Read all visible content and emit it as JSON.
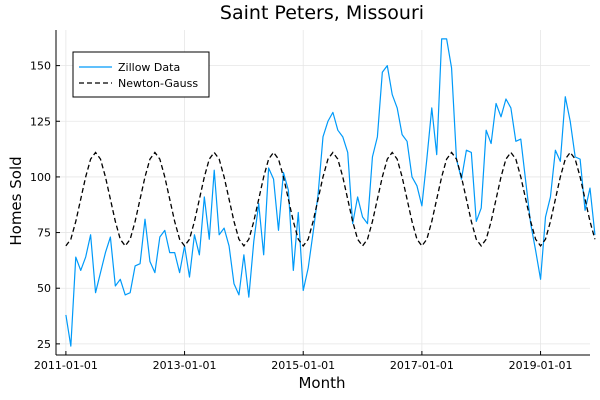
{
  "chart_data": {
    "type": "line",
    "title": "Saint Peters, Missouri",
    "xlabel": "Month",
    "ylabel": "Homes Sold",
    "x_start": "2011-01-01",
    "x_step": "1 month",
    "x_ticks": [
      "2011-01-01",
      "2013-01-01",
      "2015-01-01",
      "2017-01-01",
      "2019-01-01"
    ],
    "xlim": [
      "2010-11-01",
      "2019-11-01"
    ],
    "y_ticks": [
      25,
      50,
      75,
      100,
      125,
      150
    ],
    "ylim": [
      20,
      166
    ],
    "grid": true,
    "legend_position": "top-left",
    "series": [
      {
        "name": "Zillow Data",
        "color": "#009af9",
        "style": "solid",
        "values": [
          38,
          24,
          64,
          58,
          64,
          74,
          48,
          57,
          66,
          73,
          51,
          54,
          47,
          48,
          60,
          61,
          81,
          62,
          57,
          73,
          76,
          66,
          66,
          57,
          69,
          55,
          74,
          65,
          91,
          72,
          103,
          74,
          77,
          69,
          52,
          47,
          65,
          46,
          71,
          88,
          65,
          104,
          99,
          76,
          102,
          94,
          58,
          84,
          49,
          59,
          75,
          92,
          118,
          125,
          129,
          121,
          118,
          111,
          79,
          91,
          82,
          79,
          109,
          118,
          147,
          150,
          137,
          131,
          119,
          116,
          100,
          96,
          87,
          108,
          131,
          110,
          162,
          162,
          149,
          108,
          99,
          112,
          111,
          80,
          86,
          121,
          115,
          133,
          127,
          135,
          131,
          116,
          117,
          98,
          79,
          67,
          54,
          82,
          91,
          112,
          107,
          136,
          125,
          109,
          108,
          85,
          95,
          74
        ],
        "trend": "increasing"
      },
      {
        "name": "Newton-Gauss",
        "color": "#000000",
        "style": "dashed",
        "mean": 90,
        "amplitude": 21,
        "period_months": 12,
        "values": [
          69,
          72,
          80,
          90,
          100,
          108,
          111,
          108,
          100,
          90,
          80,
          72
        ]
      }
    ]
  }
}
